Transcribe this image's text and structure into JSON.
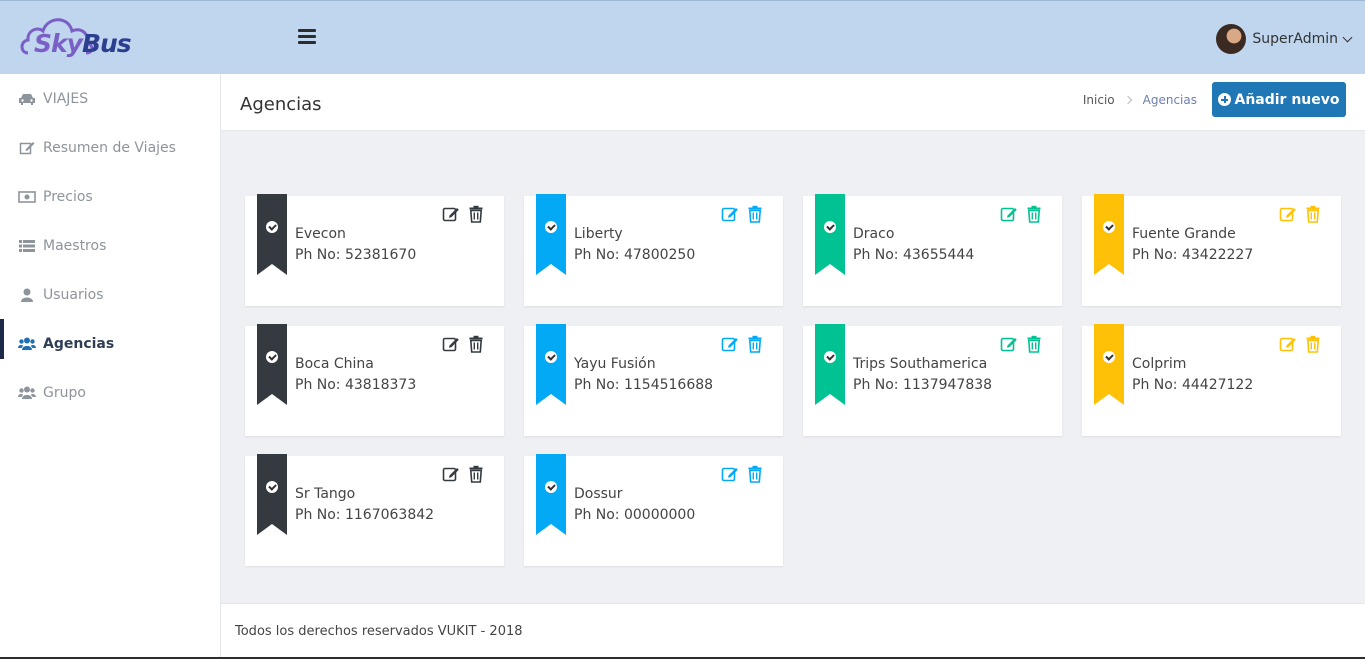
{
  "brand": {
    "part1": "Sky",
    "part2": "Bus",
    "logo_colors": {
      "sky": "#7b5fc7",
      "bus": "#2c3e8f"
    }
  },
  "header": {
    "menu_icon": "hamburger-icon",
    "user_name": "SuperAdmin"
  },
  "sidebar": {
    "items": [
      {
        "label": "VIAJES",
        "icon": "car-icon",
        "active": false
      },
      {
        "label": "Resumen de Viajes",
        "icon": "edit-icon",
        "active": false
      },
      {
        "label": "Precios",
        "icon": "money-icon",
        "active": false
      },
      {
        "label": "Maestros",
        "icon": "list-icon",
        "active": false
      },
      {
        "label": "Usuarios",
        "icon": "user-icon",
        "active": false
      },
      {
        "label": "Agencias",
        "icon": "users-icon",
        "active": true
      },
      {
        "label": "Grupo",
        "icon": "users-icon",
        "active": false
      }
    ]
  },
  "page": {
    "title": "Agencias",
    "breadcrumb": {
      "home": "Inicio",
      "current": "Agencias"
    },
    "add_button": "Añadir nuevo"
  },
  "colors": {
    "dark": "#343a40",
    "blue": "#03a9f4",
    "green": "#00c292",
    "yellow": "#fec107",
    "primary": "#1f77b5"
  },
  "agencies": [
    {
      "name": "Evecon",
      "phone": "Ph No: 52381670",
      "color": "dark"
    },
    {
      "name": "Liberty",
      "phone": "Ph No: 47800250",
      "color": "blue"
    },
    {
      "name": "Draco",
      "phone": "Ph No: 43655444",
      "color": "green"
    },
    {
      "name": "Fuente Grande",
      "phone": "Ph No: 43422227",
      "color": "yellow"
    },
    {
      "name": "Boca China",
      "phone": "Ph No: 43818373",
      "color": "dark"
    },
    {
      "name": "Yayu Fusión",
      "phone": "Ph No: 1154516688",
      "color": "blue"
    },
    {
      "name": "Trips Southamerica",
      "phone": "Ph No: 1137947838",
      "color": "green"
    },
    {
      "name": "Colprim",
      "phone": "Ph No: 44427122",
      "color": "yellow"
    },
    {
      "name": "Sr Tango",
      "phone": "Ph No: 1167063842",
      "color": "dark"
    },
    {
      "name": "Dossur",
      "phone": "Ph No: 00000000",
      "color": "blue"
    }
  ],
  "footer": {
    "text": "Todos los derechos reservados VUKIT - 2018"
  }
}
